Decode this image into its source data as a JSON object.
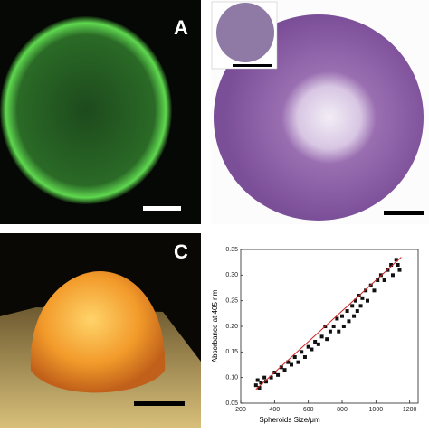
{
  "panels": [
    {
      "label": "A"
    },
    {
      "label": "C"
    }
  ],
  "chart_data": {
    "type": "scatter",
    "x_label": "Spheroids Size/μm",
    "y_label": "Absorbance at 405 nm",
    "x": [
      290,
      300,
      310,
      320,
      340,
      350,
      380,
      400,
      420,
      440,
      460,
      480,
      500,
      520,
      540,
      560,
      580,
      600,
      620,
      640,
      660,
      680,
      700,
      710,
      730,
      750,
      770,
      780,
      800,
      810,
      830,
      840,
      860,
      870,
      880,
      890,
      900,
      910,
      920,
      940,
      950,
      970,
      990,
      1010,
      1030,
      1050,
      1070,
      1090,
      1100,
      1120,
      1130,
      1140
    ],
    "values": [
      0.085,
      0.095,
      0.08,
      0.09,
      0.1,
      0.092,
      0.1,
      0.11,
      0.105,
      0.12,
      0.115,
      0.13,
      0.125,
      0.14,
      0.13,
      0.15,
      0.14,
      0.16,
      0.155,
      0.17,
      0.165,
      0.18,
      0.2,
      0.175,
      0.19,
      0.2,
      0.215,
      0.19,
      0.22,
      0.2,
      0.23,
      0.21,
      0.24,
      0.22,
      0.25,
      0.23,
      0.26,
      0.24,
      0.255,
      0.27,
      0.25,
      0.28,
      0.27,
      0.29,
      0.3,
      0.29,
      0.31,
      0.32,
      0.3,
      0.33,
      0.32,
      0.31
    ],
    "color": "#111111",
    "fit": {
      "x": [
        290,
        1150
      ],
      "values": [
        0.077,
        0.335
      ],
      "color": "#d02020"
    },
    "xlim": [
      200,
      1250
    ],
    "ylim": [
      0.05,
      0.35
    ],
    "xticks": [
      200,
      400,
      600,
      800,
      1000,
      1200
    ],
    "yticks": [
      0.05,
      {
        "value": 0.1,
        "label": "0.10"
      },
      0.15,
      {
        "value": 0.2,
        "label": "0.20"
      },
      0.25,
      {
        "value": 0.3,
        "label": "0.30"
      },
      0.35
    ]
  }
}
